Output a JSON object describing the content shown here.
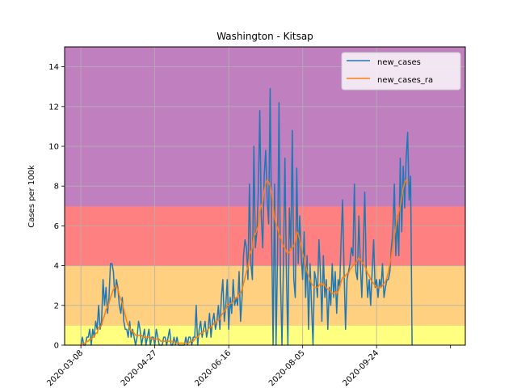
{
  "chart_data": {
    "type": "line",
    "title": "Washington - Kitsap",
    "xlabel": "",
    "ylabel": "Cases per 100k",
    "ylim": [
      0,
      15
    ],
    "xlim": [
      "2020-02-26",
      "2020-11-23"
    ],
    "grid": true,
    "legend_position": "top-right",
    "x_ticks": [
      "2020-03-08",
      "2020-04-27",
      "2020-06-16",
      "2020-08-05",
      "2020-09-24"
    ],
    "y_ticks": [
      0,
      2,
      4,
      6,
      8,
      10,
      12,
      14
    ],
    "risk_bands": [
      {
        "from": 0,
        "to": 1,
        "color": "#ffff80"
      },
      {
        "from": 1,
        "to": 4,
        "color": "#ffd080"
      },
      {
        "from": 4,
        "to": 7,
        "color": "#ff8080"
      },
      {
        "from": 7,
        "to": 15,
        "color": "#c080c0"
      }
    ],
    "series_style": [
      {
        "color": "#1f77b4"
      },
      {
        "color": "#ff7f0e"
      }
    ],
    "x_start": "2020-03-08",
    "series": [
      {
        "name": "new_cases",
        "color": "#1f77b4",
        "values": [
          0,
          0.4,
          0,
          0,
          0.4,
          0.4,
          0.8,
          0,
          0.8,
          0.4,
          1.2,
          0.8,
          2.0,
          0.8,
          1.2,
          3.3,
          2.0,
          2.9,
          1.6,
          2.4,
          4.1,
          4.1,
          3.7,
          2.4,
          3.3,
          2.9,
          2.0,
          1.6,
          2.4,
          1.2,
          0.8,
          0.8,
          0.4,
          1.2,
          0.4,
          0.8,
          0.4,
          0,
          0.4,
          1.2,
          0.8,
          0,
          0.4,
          0.8,
          0,
          0.4,
          0.8,
          0,
          0.4,
          0.4,
          0,
          0.8,
          0.4,
          0,
          0,
          0,
          0.4,
          0.4,
          0,
          0.4,
          0.8,
          0,
          0,
          0.4,
          0,
          0.4,
          0,
          0,
          0,
          0,
          0,
          0.4,
          0,
          0.4,
          0.4,
          0,
          0.4,
          0.4,
          2.0,
          0,
          0.8,
          1.2,
          0.4,
          0.8,
          1.2,
          0.4,
          0.8,
          1.6,
          0.4,
          1.2,
          1.6,
          0.8,
          1.2,
          2.0,
          0.8,
          2.4,
          3.3,
          1.2,
          2.0,
          3.3,
          0.8,
          2.4,
          1.6,
          3.3,
          2.0,
          2.4,
          2.0,
          3.7,
          1.2,
          2.4,
          4.5,
          5.3,
          4.9,
          3.3,
          8.1,
          4.1,
          3.3,
          10.0,
          4.9,
          5.7,
          7.7,
          11.8,
          6.5,
          4.9,
          8.5,
          9.8,
          7.3,
          6.1,
          12.9,
          5.7,
          0,
          8.1,
          0,
          4.5,
          12.2,
          3.3,
          0,
          4.1,
          9.4,
          3.7,
          0,
          6.9,
          4.9,
          10.8,
          3.3,
          2.4,
          8.9,
          4.1,
          6.5,
          4.5,
          3.3,
          5.7,
          2.4,
          4.5,
          0.8,
          4.1,
          2.0,
          0,
          3.7,
          3.3,
          2.4,
          5.3,
          3.7,
          1.2,
          4.5,
          2.4,
          3.3,
          0.8,
          2.9,
          2.0,
          4.1,
          2.4,
          3.7,
          1.6,
          3.3,
          2.9,
          5.3,
          7.3,
          3.7,
          0.8,
          3.3,
          3.7,
          4.1,
          4.9,
          4.5,
          8.1,
          3.7,
          3.3,
          6.5,
          4.1,
          2.4,
          4.9,
          7.7,
          3.7,
          2.4,
          3.3,
          2.0,
          3.7,
          5.3,
          2.9,
          3.3,
          2.4,
          3.3,
          2.9,
          4.1,
          2.4,
          2.9,
          3.3,
          3.3,
          3.7,
          4.9,
          5.7,
          8.1,
          4.5,
          6.5,
          4.5,
          9.4,
          5.7,
          9.0,
          6.9,
          9.4,
          10.7,
          7.3,
          8.5,
          0
        ]
      },
      {
        "name": "new_cases_ra",
        "color": "#ff7f0e",
        "values": [
          0,
          0.1,
          0.1,
          0.1,
          0.2,
          0.2,
          0.3,
          0.3,
          0.4,
          0.4,
          0.6,
          0.6,
          0.9,
          0.9,
          1.0,
          1.3,
          1.5,
          1.8,
          1.9,
          2.1,
          2.4,
          2.6,
          2.8,
          2.9,
          3.0,
          2.8,
          2.5,
          2.3,
          2.1,
          1.8,
          1.5,
          1.2,
          1.0,
          0.9,
          0.7,
          0.7,
          0.6,
          0.5,
          0.5,
          0.5,
          0.5,
          0.5,
          0.4,
          0.4,
          0.4,
          0.4,
          0.4,
          0.4,
          0.3,
          0.3,
          0.3,
          0.3,
          0.3,
          0.3,
          0.2,
          0.2,
          0.2,
          0.2,
          0.2,
          0.2,
          0.2,
          0.2,
          0.2,
          0.2,
          0.1,
          0.1,
          0.1,
          0.1,
          0.1,
          0.1,
          0.1,
          0.1,
          0.1,
          0.1,
          0.2,
          0.2,
          0.2,
          0.3,
          0.4,
          0.4,
          0.5,
          0.6,
          0.6,
          0.7,
          0.7,
          0.7,
          0.8,
          0.9,
          0.9,
          1.0,
          1.1,
          1.1,
          1.2,
          1.3,
          1.3,
          1.5,
          1.6,
          1.7,
          1.8,
          2.0,
          2.0,
          2.1,
          2.1,
          2.2,
          2.3,
          2.4,
          2.4,
          2.6,
          2.6,
          2.8,
          3.1,
          3.4,
          3.7,
          3.9,
          4.5,
          4.7,
          4.9,
          5.5,
          5.6,
          5.8,
          6.0,
          6.7,
          7.0,
          7.2,
          7.8,
          8.1,
          8.3,
          8.2,
          8.0,
          7.6,
          7.0,
          6.4,
          6.1,
          5.9,
          5.6,
          5.4,
          5.2,
          5.0,
          4.9,
          4.7,
          4.6,
          4.7,
          4.8,
          4.9,
          5.0,
          5.2,
          5.7,
          5.6,
          5.3,
          5.0,
          4.6,
          4.4,
          4.0,
          3.7,
          3.5,
          3.3,
          3.1,
          3.0,
          2.9,
          2.9,
          2.9,
          3.0,
          3.1,
          3.0,
          3.1,
          3.0,
          2.9,
          2.8,
          2.8,
          2.7,
          2.6,
          2.6,
          2.7,
          2.6,
          2.7,
          2.9,
          3.2,
          3.4,
          3.4,
          3.5,
          3.6,
          3.6,
          3.8,
          3.9,
          4.0,
          4.1,
          4.1,
          4.3,
          4.4,
          4.3,
          4.2,
          4.1,
          4.0,
          3.8,
          3.6,
          3.5,
          3.3,
          3.2,
          3.1,
          3.0,
          2.9,
          2.9,
          2.9,
          2.9,
          3.0,
          3.1,
          3.2,
          3.4,
          3.7,
          4.1,
          4.5,
          5.0,
          5.5,
          5.9,
          6.4,
          6.7,
          7.0,
          7.4,
          7.9,
          8.2,
          8.3,
          8.1
        ]
      }
    ]
  }
}
